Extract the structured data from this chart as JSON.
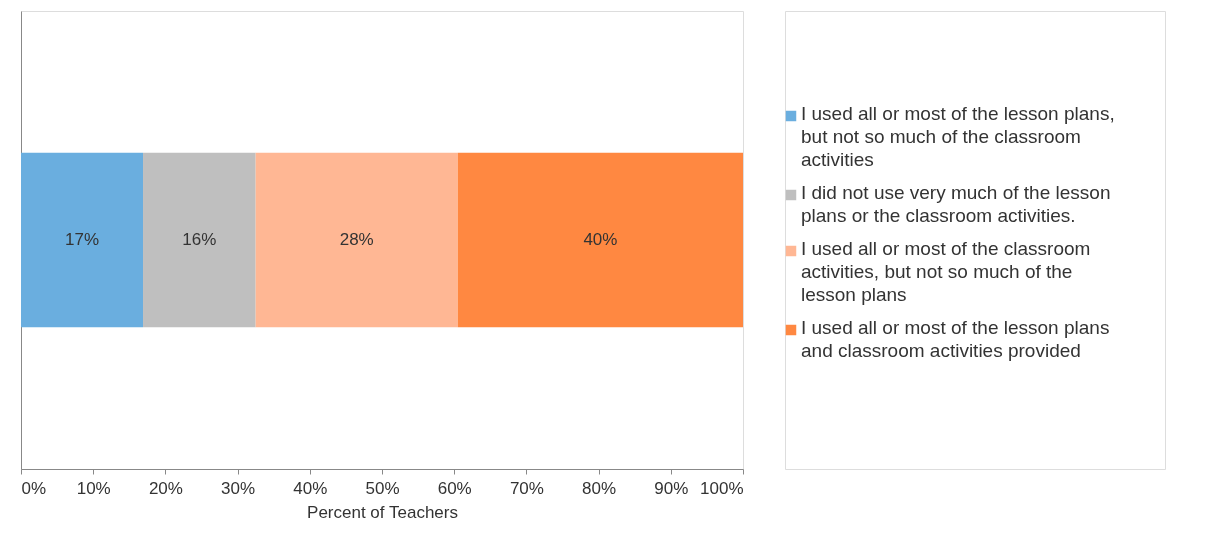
{
  "chart_data": {
    "type": "bar",
    "orientation": "horizontal",
    "stacked": true,
    "xlabel": "Percent of Teachers",
    "categories": [
      null
    ],
    "series": [
      {
        "name": "I used all or most of the lesson plans, but not so much of the classroom activities",
        "color": "#6aaedf",
        "values": [
          16.9
        ],
        "value_labels": [
          "17%"
        ]
      },
      {
        "name": "I did not use very much of the lesson plans or the classroom activities.",
        "color": "#bfbfbf",
        "values": [
          15.6
        ],
        "value_labels": [
          "16%"
        ]
      },
      {
        "name": "I used all or most of the classroom activities, but not so much of the lesson plans",
        "color": "#ffb794",
        "values": [
          28.0
        ],
        "value_labels": [
          "28%"
        ]
      },
      {
        "name": "I used all or most of the lesson plans and classroom activities provided",
        "color": "#ff8841",
        "values": [
          39.5
        ],
        "value_labels": [
          "40%"
        ]
      }
    ],
    "xlim": [
      0,
      100
    ],
    "xticks": [
      {
        "value": 0,
        "label": "0%"
      },
      {
        "value": 10,
        "label": "10%"
      },
      {
        "value": 20,
        "label": "20%"
      },
      {
        "value": 30,
        "label": "30%"
      },
      {
        "value": 40,
        "label": "40%"
      },
      {
        "value": 50,
        "label": "50%"
      },
      {
        "value": 60,
        "label": "60%"
      },
      {
        "value": 70,
        "label": "70%"
      },
      {
        "value": 80,
        "label": "80%"
      },
      {
        "value": 90,
        "label": "90%"
      },
      {
        "value": 100,
        "label": "100%"
      }
    ],
    "tick_labels": "x",
    "grid": false,
    "legend": "right"
  }
}
